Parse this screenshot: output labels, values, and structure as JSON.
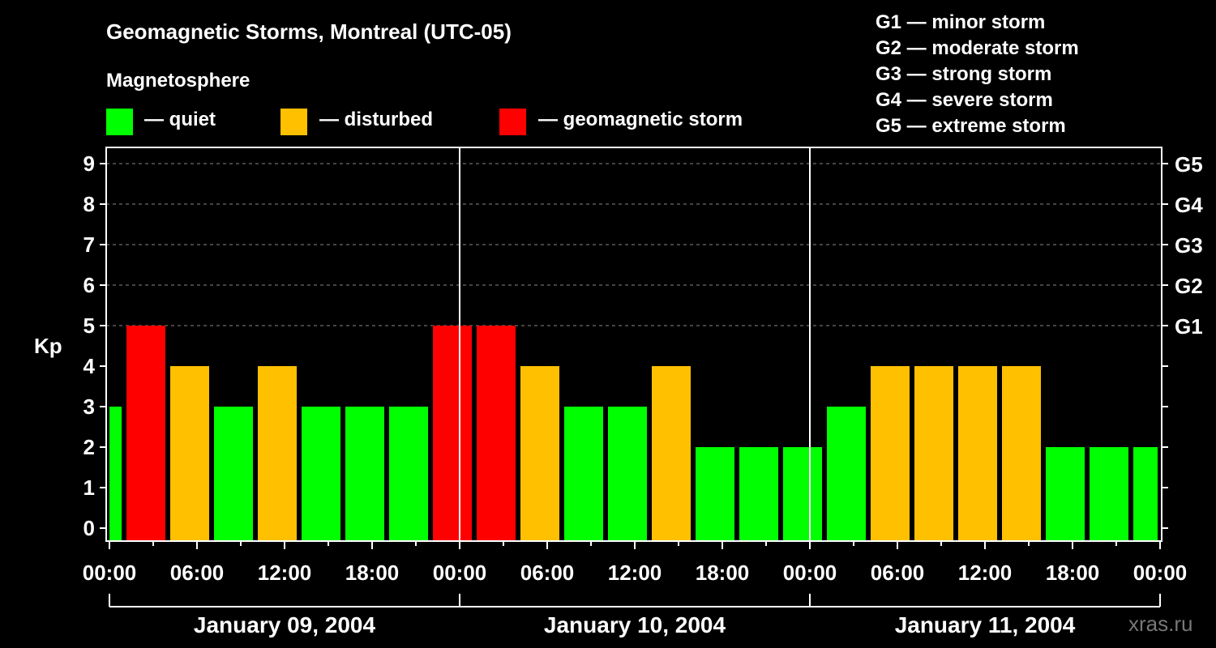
{
  "title": "Geomagnetic Storms, Montreal (UTC-05)",
  "legend": {
    "heading": "Magnetosphere",
    "items": [
      {
        "label": "— quiet",
        "color": "#00ff00"
      },
      {
        "label": "— disturbed",
        "color": "#ffc000"
      },
      {
        "label": "— geomagnetic storm",
        "color": "#ff0000"
      }
    ],
    "scale": [
      "G1 — minor storm",
      "G2 — moderate storm",
      "G3 — strong storm",
      "G4 — severe storm",
      "G5 — extreme storm"
    ]
  },
  "watermark": "xras.ru",
  "chart_data": {
    "type": "bar",
    "title": "Geomagnetic Storms, Montreal (UTC-05)",
    "ylabel": "Kp",
    "ylim": [
      0,
      9
    ],
    "yticks": [
      "0",
      "1",
      "2",
      "3",
      "4",
      "5",
      "6",
      "7",
      "8",
      "9"
    ],
    "right_ticks": [
      {
        "kp": 5,
        "label": "G1"
      },
      {
        "kp": 6,
        "label": "G2"
      },
      {
        "kp": 7,
        "label": "G3"
      },
      {
        "kp": 8,
        "label": "G4"
      },
      {
        "kp": 9,
        "label": "G5"
      }
    ],
    "grid": "dashed at Kp 5-9",
    "xlim_hours": [
      0,
      72
    ],
    "xticks": [
      "00:00",
      "06:00",
      "12:00",
      "18:00",
      "00:00",
      "06:00",
      "12:00",
      "18:00",
      "00:00",
      "06:00",
      "12:00",
      "18:00",
      "00:00"
    ],
    "days": [
      "January 09, 2004",
      "January 10, 2004",
      "January 11, 2004"
    ],
    "interval_hours": 3,
    "first_interval_start_hour": -2,
    "values": [
      3,
      5,
      4,
      3,
      4,
      3,
      3,
      3,
      5,
      5,
      4,
      3,
      3,
      4,
      2,
      2,
      2,
      3,
      4,
      4,
      4,
      4,
      2,
      2,
      2
    ],
    "colors": {
      "quiet": "#00ff00",
      "disturbed": "#ffc000",
      "storm": "#ff0000"
    }
  }
}
